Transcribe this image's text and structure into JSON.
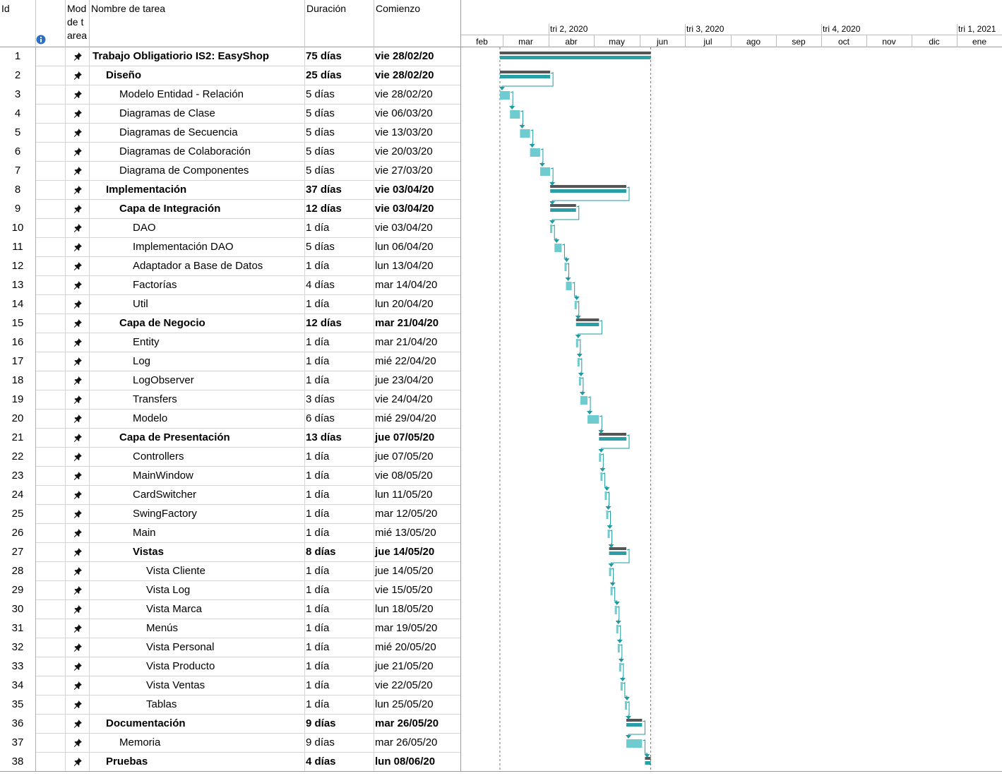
{
  "headers": {
    "id": "Id",
    "mode": "Mod de tarea",
    "name": "Nombre de tarea",
    "duration": "Duración",
    "start": "Comienzo"
  },
  "timescale": {
    "quarters": [
      "tri 2, 2020",
      "tri 3, 2020",
      "tri 4, 2020",
      "tri 1, 2021"
    ],
    "months": [
      "feb",
      "mar",
      "abr",
      "may",
      "jun",
      "jul",
      "ago",
      "sep",
      "oct",
      "nov",
      "dic",
      "ene"
    ]
  },
  "colors": {
    "summary_bar": "#555555",
    "summary_progress": "#2a9fa5",
    "task_bar": "#6ecbd0",
    "link": "#1f9aa3"
  },
  "tasks": [
    {
      "id": "1",
      "name": "Trabajo Obligatiorio IS2: EasyShop",
      "duration": "75 días",
      "start": "vie 28/02/20",
      "level": 0,
      "summary": true
    },
    {
      "id": "2",
      "name": "Diseño",
      "duration": "25 días",
      "start": "vie 28/02/20",
      "level": 1,
      "summary": true
    },
    {
      "id": "3",
      "name": "Modelo Entidad - Relación",
      "duration": "5 días",
      "start": "vie 28/02/20",
      "level": 2,
      "summary": false
    },
    {
      "id": "4",
      "name": "Diagramas de Clase",
      "duration": "5 días",
      "start": "vie 06/03/20",
      "level": 2,
      "summary": false
    },
    {
      "id": "5",
      "name": "Diagramas de Secuencia",
      "duration": "5 días",
      "start": "vie 13/03/20",
      "level": 2,
      "summary": false
    },
    {
      "id": "6",
      "name": "Diagramas de Colaboración",
      "duration": "5 días",
      "start": "vie 20/03/20",
      "level": 2,
      "summary": false
    },
    {
      "id": "7",
      "name": "Diagrama de Componentes",
      "duration": "5 días",
      "start": "vie 27/03/20",
      "level": 2,
      "summary": false
    },
    {
      "id": "8",
      "name": "Implementación",
      "duration": "37 días",
      "start": "vie 03/04/20",
      "level": 1,
      "summary": true
    },
    {
      "id": "9",
      "name": "Capa de Integración",
      "duration": "12 días",
      "start": "vie 03/04/20",
      "level": 2,
      "summary": true
    },
    {
      "id": "10",
      "name": "DAO",
      "duration": "1 día",
      "start": "vie 03/04/20",
      "level": 3,
      "summary": false
    },
    {
      "id": "11",
      "name": "Implementación DAO",
      "duration": "5 días",
      "start": "lun 06/04/20",
      "level": 3,
      "summary": false
    },
    {
      "id": "12",
      "name": "Adaptador a Base de Datos",
      "duration": "1 día",
      "start": "lun 13/04/20",
      "level": 3,
      "summary": false
    },
    {
      "id": "13",
      "name": "Factorías",
      "duration": "4 días",
      "start": "mar 14/04/20",
      "level": 3,
      "summary": false
    },
    {
      "id": "14",
      "name": "Util",
      "duration": "1 día",
      "start": "lun 20/04/20",
      "level": 3,
      "summary": false
    },
    {
      "id": "15",
      "name": "Capa de Negocio",
      "duration": "12 días",
      "start": "mar 21/04/20",
      "level": 2,
      "summary": true
    },
    {
      "id": "16",
      "name": "Entity",
      "duration": "1 día",
      "start": "mar 21/04/20",
      "level": 3,
      "summary": false
    },
    {
      "id": "17",
      "name": "Log",
      "duration": "1 día",
      "start": "mié 22/04/20",
      "level": 3,
      "summary": false
    },
    {
      "id": "18",
      "name": "LogObserver",
      "duration": "1 día",
      "start": "jue 23/04/20",
      "level": 3,
      "summary": false
    },
    {
      "id": "19",
      "name": "Transfers",
      "duration": "3 días",
      "start": "vie 24/04/20",
      "level": 3,
      "summary": false
    },
    {
      "id": "20",
      "name": "Modelo",
      "duration": "6 días",
      "start": "mié 29/04/20",
      "level": 3,
      "summary": false
    },
    {
      "id": "21",
      "name": "Capa de Presentación",
      "duration": "13 días",
      "start": "jue 07/05/20",
      "level": 2,
      "summary": true
    },
    {
      "id": "22",
      "name": "Controllers",
      "duration": "1 día",
      "start": "jue 07/05/20",
      "level": 3,
      "summary": false
    },
    {
      "id": "23",
      "name": "MainWindow",
      "duration": "1 día",
      "start": "vie 08/05/20",
      "level": 3,
      "summary": false
    },
    {
      "id": "24",
      "name": "CardSwitcher",
      "duration": "1 día",
      "start": "lun 11/05/20",
      "level": 3,
      "summary": false
    },
    {
      "id": "25",
      "name": "SwingFactory",
      "duration": "1 día",
      "start": "mar 12/05/20",
      "level": 3,
      "summary": false
    },
    {
      "id": "26",
      "name": "Main",
      "duration": "1 día",
      "start": "mié 13/05/20",
      "level": 3,
      "summary": false
    },
    {
      "id": "27",
      "name": "Vistas",
      "duration": "8 días",
      "start": "jue 14/05/20",
      "level": 3,
      "summary": true
    },
    {
      "id": "28",
      "name": "Vista Cliente",
      "duration": "1 día",
      "start": "jue 14/05/20",
      "level": 4,
      "summary": false
    },
    {
      "id": "29",
      "name": "Vista Log",
      "duration": "1 día",
      "start": "vie 15/05/20",
      "level": 4,
      "summary": false
    },
    {
      "id": "30",
      "name": "Vista Marca",
      "duration": "1 día",
      "start": "lun 18/05/20",
      "level": 4,
      "summary": false
    },
    {
      "id": "31",
      "name": "Menús",
      "duration": "1 día",
      "start": "mar 19/05/20",
      "level": 4,
      "summary": false
    },
    {
      "id": "32",
      "name": "Vista Personal",
      "duration": "1 día",
      "start": "mié 20/05/20",
      "level": 4,
      "summary": false
    },
    {
      "id": "33",
      "name": "Vista Producto",
      "duration": "1 día",
      "start": "jue 21/05/20",
      "level": 4,
      "summary": false
    },
    {
      "id": "34",
      "name": "Vista Ventas",
      "duration": "1 día",
      "start": "vie 22/05/20",
      "level": 4,
      "summary": false
    },
    {
      "id": "35",
      "name": "Tablas",
      "duration": "1 día",
      "start": "lun 25/05/20",
      "level": 4,
      "summary": false
    },
    {
      "id": "36",
      "name": "Documentación",
      "duration": "9 días",
      "start": "mar 26/05/20",
      "level": 1,
      "summary": true
    },
    {
      "id": "37",
      "name": "Memoria",
      "duration": "9 días",
      "start": "mar 26/05/20",
      "level": 2,
      "summary": false
    },
    {
      "id": "38",
      "name": "Pruebas",
      "duration": "4 días",
      "start": "lun 08/06/20",
      "level": 1,
      "summary": true
    }
  ]
}
